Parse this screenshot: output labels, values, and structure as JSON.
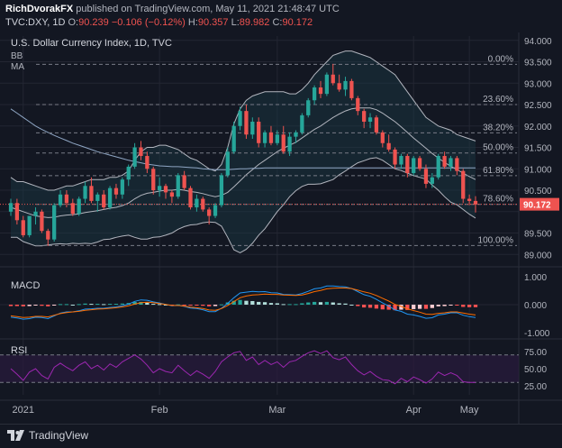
{
  "header": {
    "author": "RichDvorakFX",
    "published_text": "published on TradingView.com, May 11, 2021 21:48:47 UTC",
    "symbol": "TVC:DXY, 1D",
    "ohlc": {
      "open_label": "90.172",
      "open": "",
      "change": "−0.106 (−0.12%)",
      "high_label": "O:",
      "high": "90.239",
      "low_label": "H:",
      "low": "90.357",
      "close_label": "L:",
      "close": "89.982",
      "c_label": "C:",
      "c": "90.172"
    }
  },
  "footer": {
    "brand": "TradingView"
  },
  "colors": {
    "background": "#131722",
    "up": "#26a69a",
    "down": "#ef5350",
    "bb": "#b2b5be",
    "bb_fill": "#1b3a44",
    "ma": "#8fa6c4",
    "macd_line": "#2196f3",
    "signal_line": "#ff6d00",
    "rsi_line": "#9c27b0",
    "rsi_band": "#2a1b3d",
    "grid": "#232632",
    "fib": "#787b86"
  },
  "chart_data": [
    {
      "type": "candlestick",
      "title": "U.S. Dollar Currency Index, 1D, TVC",
      "indicator_labels": [
        "BB",
        "MA"
      ],
      "y_ticks": [
        "94.000",
        "93.500",
        "93.000",
        "92.500",
        "92.000",
        "91.500",
        "91.000",
        "90.500",
        "90.000",
        "89.500",
        "89.000"
      ],
      "ylim": [
        88.88,
        94.1
      ],
      "current_price": "90.172",
      "x_ticks": [
        "2021",
        "Feb",
        "Mar",
        "Apr",
        "May"
      ],
      "fibonacci_levels": [
        {
          "label": "0.00%",
          "value": 93.44
        },
        {
          "label": "23.60%",
          "value": 92.5
        },
        {
          "label": "38.20%",
          "value": 91.84
        },
        {
          "label": "50.00%",
          "value": 91.37
        },
        {
          "label": "61.80%",
          "value": 90.84
        },
        {
          "label": "78.60%",
          "value": 90.17
        },
        {
          "label": "100.00%",
          "value": 89.21
        }
      ],
      "candles": [
        [
          90.0,
          90.3,
          89.9,
          90.2
        ],
        [
          90.2,
          90.3,
          89.7,
          89.8
        ],
        [
          89.8,
          89.9,
          89.4,
          89.45
        ],
        [
          89.45,
          89.9,
          89.4,
          89.9
        ],
        [
          89.9,
          90.1,
          89.7,
          90.0
        ],
        [
          90.0,
          90.05,
          89.5,
          89.55
        ],
        [
          89.55,
          89.6,
          89.2,
          89.35
        ],
        [
          89.35,
          90.2,
          89.3,
          90.15
        ],
        [
          90.15,
          90.5,
          90.1,
          90.4
        ],
        [
          90.4,
          90.5,
          90.1,
          90.2
        ],
        [
          90.2,
          90.3,
          89.9,
          89.95
        ],
        [
          89.95,
          90.35,
          89.9,
          90.3
        ],
        [
          90.3,
          90.7,
          90.2,
          90.6
        ],
        [
          90.6,
          90.8,
          90.2,
          90.25
        ],
        [
          90.25,
          90.45,
          90.0,
          90.4
        ],
        [
          90.4,
          90.5,
          90.05,
          90.1
        ],
        [
          90.1,
          90.6,
          90.05,
          90.55
        ],
        [
          90.55,
          90.65,
          90.3,
          90.4
        ],
        [
          90.4,
          90.8,
          90.3,
          90.75
        ],
        [
          90.75,
          91.1,
          90.6,
          91.05
        ],
        [
          91.05,
          91.6,
          91.0,
          91.5
        ],
        [
          91.5,
          91.65,
          91.2,
          91.3
        ],
        [
          91.3,
          91.4,
          90.9,
          91.0
        ],
        [
          91.0,
          91.05,
          90.4,
          90.5
        ],
        [
          90.5,
          90.8,
          90.35,
          90.6
        ],
        [
          90.6,
          90.65,
          90.3,
          90.45
        ],
        [
          90.45,
          90.5,
          90.2,
          90.35
        ],
        [
          90.35,
          90.9,
          90.3,
          90.85
        ],
        [
          90.85,
          90.95,
          90.5,
          90.55
        ],
        [
          90.55,
          90.6,
          90.05,
          90.1
        ],
        [
          90.1,
          90.4,
          90.0,
          90.3
        ],
        [
          90.3,
          90.35,
          90.0,
          90.05
        ],
        [
          90.05,
          90.1,
          89.7,
          89.9
        ],
        [
          89.9,
          90.2,
          89.85,
          90.15
        ],
        [
          90.15,
          90.9,
          90.1,
          90.85
        ],
        [
          90.85,
          91.5,
          90.8,
          91.4
        ],
        [
          91.4,
          92.1,
          91.35,
          92.0
        ],
        [
          92.0,
          92.45,
          91.9,
          92.35
        ],
        [
          92.35,
          92.5,
          91.7,
          91.8
        ],
        [
          91.8,
          92.2,
          91.7,
          92.1
        ],
        [
          92.1,
          92.2,
          91.5,
          91.6
        ],
        [
          91.6,
          91.9,
          91.5,
          91.85
        ],
        [
          91.85,
          92.0,
          91.55,
          91.6
        ],
        [
          91.6,
          91.9,
          91.55,
          91.8
        ],
        [
          91.8,
          92.0,
          91.35,
          91.4
        ],
        [
          91.4,
          91.85,
          91.3,
          91.75
        ],
        [
          91.75,
          91.9,
          91.6,
          91.85
        ],
        [
          91.85,
          92.3,
          91.8,
          92.25
        ],
        [
          92.25,
          92.65,
          92.2,
          92.6
        ],
        [
          92.6,
          92.95,
          92.5,
          92.9
        ],
        [
          92.9,
          93.05,
          92.65,
          92.75
        ],
        [
          92.75,
          93.25,
          92.7,
          93.2
        ],
        [
          93.2,
          93.45,
          92.95,
          93.0
        ],
        [
          93.0,
          93.2,
          92.8,
          92.85
        ],
        [
          92.85,
          93.15,
          92.7,
          93.05
        ],
        [
          93.05,
          93.1,
          92.6,
          92.65
        ],
        [
          92.65,
          92.7,
          92.25,
          92.35
        ],
        [
          92.35,
          92.4,
          91.95,
          92.1
        ],
        [
          92.1,
          92.3,
          91.95,
          92.2
        ],
        [
          92.2,
          92.25,
          91.8,
          91.85
        ],
        [
          91.85,
          91.9,
          91.5,
          91.6
        ],
        [
          91.6,
          91.8,
          91.4,
          91.45
        ],
        [
          91.45,
          91.5,
          91.0,
          91.1
        ],
        [
          91.1,
          91.35,
          91.0,
          91.3
        ],
        [
          91.3,
          91.35,
          90.8,
          90.9
        ],
        [
          90.9,
          91.3,
          90.85,
          91.25
        ],
        [
          91.25,
          91.3,
          90.95,
          91.0
        ],
        [
          91.0,
          91.1,
          90.55,
          90.65
        ],
        [
          90.65,
          90.9,
          90.55,
          90.8
        ],
        [
          90.8,
          91.35,
          90.75,
          91.3
        ],
        [
          91.3,
          91.4,
          91.0,
          91.05
        ],
        [
          91.05,
          91.3,
          90.95,
          91.25
        ],
        [
          91.25,
          91.3,
          90.85,
          90.95
        ],
        [
          90.95,
          91.0,
          90.2,
          90.3
        ],
        [
          90.3,
          90.4,
          90.15,
          90.25
        ],
        [
          90.25,
          90.36,
          89.98,
          90.17
        ]
      ],
      "bollinger": {
        "upper": [
          90.8,
          90.7,
          90.7,
          90.65,
          90.6,
          90.55,
          90.5,
          90.5,
          90.55,
          90.6,
          90.6,
          90.65,
          90.7,
          90.75,
          90.75,
          90.75,
          90.8,
          90.8,
          90.85,
          90.95,
          91.2,
          91.4,
          91.5,
          91.5,
          91.55,
          91.55,
          91.5,
          91.45,
          91.35,
          91.25,
          91.2,
          91.1,
          91.0,
          90.95,
          91.1,
          91.5,
          92.05,
          92.4,
          92.6,
          92.7,
          92.75,
          92.8,
          92.8,
          92.8,
          92.8,
          92.75,
          92.75,
          92.85,
          93.0,
          93.2,
          93.35,
          93.5,
          93.65,
          93.7,
          93.75,
          93.75,
          93.7,
          93.65,
          93.6,
          93.5,
          93.4,
          93.3,
          93.2,
          93.0,
          92.8,
          92.6,
          92.4,
          92.2,
          92.1,
          92.0,
          91.95,
          91.9,
          91.8,
          91.75,
          91.7,
          91.65
        ],
        "middle": [
          90.1,
          90.05,
          90.0,
          89.95,
          89.9,
          89.88,
          89.86,
          89.87,
          89.9,
          89.92,
          89.93,
          89.95,
          89.98,
          90.0,
          90.02,
          90.05,
          90.08,
          90.1,
          90.14,
          90.2,
          90.3,
          90.38,
          90.43,
          90.45,
          90.48,
          90.5,
          90.5,
          90.52,
          90.5,
          90.47,
          90.45,
          90.42,
          90.38,
          90.35,
          90.38,
          90.45,
          90.58,
          90.72,
          90.86,
          90.98,
          91.1,
          91.2,
          91.3,
          91.4,
          91.48,
          91.55,
          91.62,
          91.72,
          91.82,
          91.92,
          92.0,
          92.1,
          92.2,
          92.28,
          92.35,
          92.4,
          92.42,
          92.42,
          92.42,
          92.38,
          92.3,
          92.2,
          92.1,
          91.98,
          91.85,
          91.72,
          91.6,
          91.48,
          91.36,
          91.25,
          91.15,
          91.06,
          90.98,
          90.9,
          90.82,
          90.75
        ],
        "lower": [
          89.4,
          89.4,
          89.3,
          89.25,
          89.2,
          89.2,
          89.22,
          89.24,
          89.25,
          89.24,
          89.26,
          89.25,
          89.26,
          89.25,
          89.29,
          89.35,
          89.36,
          89.4,
          89.43,
          89.45,
          89.4,
          89.36,
          89.36,
          89.4,
          89.41,
          89.45,
          89.5,
          89.59,
          89.65,
          89.69,
          89.7,
          89.74,
          89.76,
          89.75,
          89.66,
          89.4,
          89.11,
          89.04,
          89.12,
          89.26,
          89.45,
          89.6,
          89.8,
          90.0,
          90.16,
          90.35,
          90.49,
          90.59,
          90.64,
          90.64,
          90.65,
          90.7,
          90.75,
          90.86,
          90.95,
          91.05,
          91.14,
          91.19,
          91.24,
          91.26,
          91.2,
          91.1,
          91.0,
          90.96,
          90.9,
          90.84,
          90.8,
          90.76,
          90.62,
          90.5,
          90.35,
          90.22,
          90.16,
          90.05,
          89.94,
          89.85
        ]
      },
      "moving_average": [
        92.4,
        92.3,
        92.2,
        92.1,
        92.0,
        91.92,
        91.85,
        91.78,
        91.72,
        91.66,
        91.6,
        91.55,
        91.5,
        91.45,
        91.4,
        91.36,
        91.32,
        91.28,
        91.24,
        91.2,
        91.17,
        91.14,
        91.11,
        91.09,
        91.07,
        91.06,
        91.05,
        91.05,
        91.04,
        91.03,
        91.02,
        91.0,
        90.99,
        90.98,
        90.98,
        90.98,
        90.99,
        91.0,
        91.0,
        91.01,
        91.01,
        91.02,
        91.02,
        91.02,
        91.02,
        91.02,
        91.02,
        91.02,
        91.02,
        91.02,
        91.02,
        91.02,
        91.02,
        91.02,
        91.02,
        91.02,
        91.02,
        91.02,
        91.02,
        91.02,
        91.02,
        91.02,
        91.02,
        91.02,
        91.02,
        91.02,
        91.02,
        91.02,
        91.02,
        91.02,
        91.02,
        91.02,
        91.02,
        91.02,
        91.02,
        91.02
      ]
    },
    {
      "type": "bar",
      "title": "MACD",
      "y_ticks": [
        "1.000",
        "0.000",
        "-1.000"
      ],
      "ylim": [
        -1.1,
        1.1
      ],
      "histogram": [
        -0.05,
        -0.05,
        -0.06,
        -0.05,
        -0.03,
        -0.04,
        -0.06,
        -0.02,
        0.02,
        0.02,
        0.0,
        0.02,
        0.04,
        0.03,
        0.03,
        0.02,
        0.03,
        0.03,
        0.04,
        0.06,
        0.1,
        0.1,
        0.07,
        0.03,
        0.02,
        0.0,
        -0.01,
        0.01,
        -0.01,
        -0.03,
        -0.03,
        -0.04,
        -0.06,
        -0.05,
        0.01,
        0.08,
        0.14,
        0.17,
        0.14,
        0.13,
        0.1,
        0.09,
        0.06,
        0.05,
        0.02,
        0.02,
        0.02,
        0.05,
        0.08,
        0.1,
        0.09,
        0.1,
        0.08,
        0.05,
        0.04,
        0.0,
        -0.05,
        -0.1,
        -0.11,
        -0.14,
        -0.17,
        -0.18,
        -0.2,
        -0.18,
        -0.19,
        -0.16,
        -0.15,
        -0.15,
        -0.12,
        -0.06,
        -0.05,
        -0.03,
        -0.03,
        -0.08,
        -0.09,
        -0.09
      ],
      "macd": [
        -0.45,
        -0.48,
        -0.52,
        -0.5,
        -0.45,
        -0.46,
        -0.5,
        -0.4,
        -0.3,
        -0.26,
        -0.26,
        -0.22,
        -0.16,
        -0.15,
        -0.13,
        -0.13,
        -0.1,
        -0.08,
        -0.04,
        0.02,
        0.12,
        0.17,
        0.16,
        0.1,
        0.06,
        0.01,
        -0.04,
        -0.02,
        -0.06,
        -0.12,
        -0.14,
        -0.18,
        -0.25,
        -0.25,
        -0.13,
        0.05,
        0.25,
        0.42,
        0.45,
        0.48,
        0.46,
        0.47,
        0.43,
        0.42,
        0.37,
        0.36,
        0.35,
        0.4,
        0.48,
        0.57,
        0.6,
        0.67,
        0.67,
        0.65,
        0.64,
        0.58,
        0.47,
        0.36,
        0.3,
        0.19,
        0.06,
        -0.05,
        -0.19,
        -0.24,
        -0.34,
        -0.37,
        -0.42,
        -0.49,
        -0.47,
        -0.37,
        -0.34,
        -0.29,
        -0.29,
        -0.38,
        -0.43,
        -0.46
      ],
      "signal": [
        -0.4,
        -0.43,
        -0.46,
        -0.45,
        -0.42,
        -0.42,
        -0.44,
        -0.38,
        -0.32,
        -0.28,
        -0.26,
        -0.24,
        -0.2,
        -0.18,
        -0.16,
        -0.15,
        -0.13,
        -0.11,
        -0.08,
        -0.04,
        0.02,
        0.07,
        0.09,
        0.07,
        0.04,
        0.01,
        -0.03,
        -0.03,
        -0.05,
        -0.09,
        -0.11,
        -0.14,
        -0.19,
        -0.2,
        -0.14,
        -0.03,
        0.11,
        0.25,
        0.31,
        0.35,
        0.36,
        0.38,
        0.37,
        0.37,
        0.35,
        0.34,
        0.33,
        0.35,
        0.4,
        0.47,
        0.51,
        0.57,
        0.59,
        0.6,
        0.6,
        0.58,
        0.52,
        0.46,
        0.41,
        0.33,
        0.23,
        0.13,
        0.01,
        -0.06,
        -0.15,
        -0.21,
        -0.27,
        -0.34,
        -0.35,
        -0.31,
        -0.29,
        -0.26,
        -0.26,
        -0.3,
        -0.34,
        -0.37
      ]
    },
    {
      "type": "line",
      "title": "RSI",
      "y_ticks": [
        "75.00",
        "50.00",
        "25.00"
      ],
      "ylim": [
        12,
        88
      ],
      "band": [
        30,
        70
      ],
      "values": [
        50,
        42,
        33,
        45,
        50,
        40,
        35,
        52,
        58,
        52,
        47,
        55,
        60,
        50,
        55,
        48,
        57,
        52,
        60,
        65,
        70,
        64,
        55,
        44,
        50,
        46,
        44,
        55,
        47,
        40,
        47,
        42,
        36,
        46,
        60,
        67,
        73,
        75,
        62,
        67,
        56,
        62,
        56,
        60,
        52,
        60,
        62,
        68,
        73,
        76,
        72,
        76,
        66,
        63,
        67,
        56,
        47,
        41,
        46,
        39,
        34,
        33,
        28,
        36,
        31,
        38,
        34,
        29,
        35,
        45,
        40,
        44,
        40,
        31,
        30,
        30
      ]
    }
  ],
  "axis": {
    "x_ticks": [
      "2021",
      "Feb",
      "Mar",
      "Apr",
      "May"
    ]
  }
}
